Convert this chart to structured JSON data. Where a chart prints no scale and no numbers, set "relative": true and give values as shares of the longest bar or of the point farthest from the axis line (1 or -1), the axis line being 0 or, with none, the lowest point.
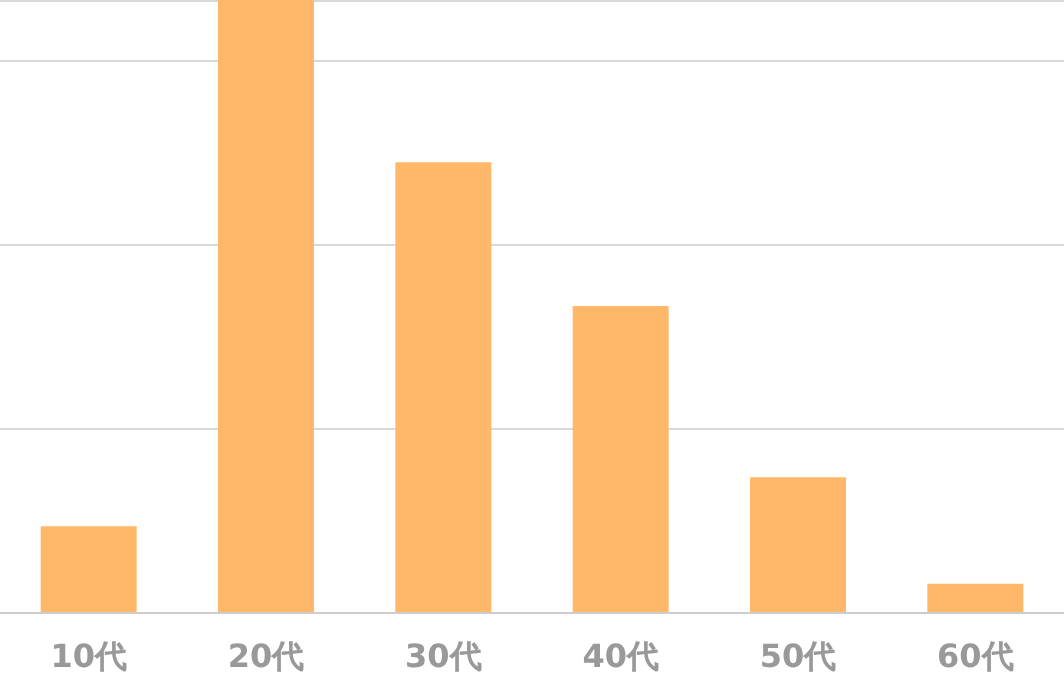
{
  "chart_data": {
    "type": "bar",
    "relative": true,
    "categories": [
      "10代",
      "20代",
      "30代",
      "40代",
      "50代",
      "60代"
    ],
    "values": [
      0.14,
      1,
      0.735,
      0.5,
      0.22,
      0.046
    ],
    "color": "#ffb869",
    "grid": "y"
  }
}
